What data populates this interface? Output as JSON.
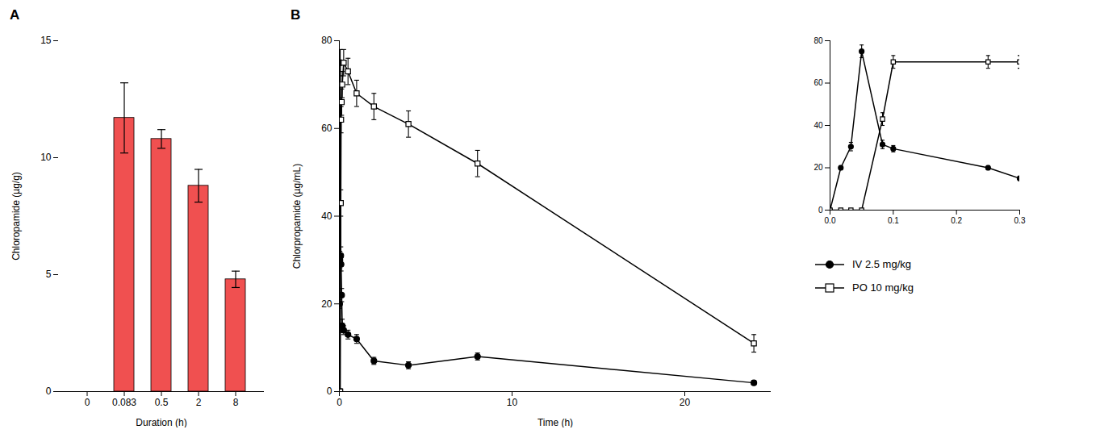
{
  "chart_data": [
    {
      "type": "bar",
      "title": "A",
      "categories": [
        "0",
        "0.083",
        "0.5",
        "2",
        "8"
      ],
      "values": [
        0,
        11.7,
        10.8,
        8.8,
        4.8
      ],
      "errors": [
        0,
        1.5,
        0.4,
        0.7,
        0.35
      ],
      "color": "#F05050",
      "xlabel": "Duration (h)",
      "ylabel": "Chloropamide (µg/g)",
      "ylim": [
        0,
        15
      ],
      "yticks": [
        0,
        5,
        10,
        15
      ]
    },
    {
      "type": "line",
      "title": "B",
      "xlabel": "Time (h)",
      "ylabel": "Chlorpropamide (µg/mL)",
      "x": [
        0,
        0.017,
        0.033,
        0.05,
        0.083,
        0.1,
        0.133,
        0.167,
        0.25,
        0.5,
        1.0,
        2.0,
        4.0,
        8.0,
        24.0
      ],
      "series": [
        {
          "name": "IV 2.5 mg/kg",
          "color": "black",
          "marker": "circle",
          "values": [
            0,
            20,
            30,
            75,
            31,
            29,
            22,
            15,
            14,
            13,
            12,
            7,
            6,
            8,
            2
          ],
          "errors": [
            0,
            1,
            2,
            3,
            2,
            1.5,
            1.5,
            1.5,
            1,
            1,
            1,
            0.8,
            0.8,
            0.8,
            0.5
          ]
        },
        {
          "name": "PO 10 mg/kg",
          "color": "black",
          "marker": "square",
          "values": [
            0,
            0,
            0,
            0,
            43,
            62,
            66,
            70,
            75,
            73,
            68,
            65,
            61,
            52,
            11
          ],
          "errors": [
            0,
            0,
            0,
            0,
            3,
            3,
            3,
            3,
            3,
            3,
            3,
            3,
            3,
            3,
            2
          ]
        }
      ],
      "xlim": [
        0,
        25
      ],
      "xticks": [
        0,
        10,
        20
      ],
      "ylim": [
        0,
        80
      ],
      "yticks": [
        0,
        20,
        40,
        60,
        80
      ],
      "legend": "right"
    },
    {
      "type": "line",
      "x": [
        0,
        0.017,
        0.033,
        0.05,
        0.083,
        0.1,
        0.25,
        0.3
      ],
      "series": [
        {
          "color": "black",
          "marker": "circle",
          "values": [
            0,
            20,
            30,
            75,
            31,
            29,
            20,
            15
          ],
          "errors": [
            0,
            1,
            2,
            3,
            2,
            1.5,
            1,
            1
          ]
        },
        {
          "color": "black",
          "marker": "square",
          "values": [
            0,
            0,
            0,
            0,
            43,
            70,
            70,
            70
          ],
          "errors": [
            0,
            0,
            0,
            0,
            3,
            3,
            3,
            3
          ]
        }
      ],
      "xlim": [
        0,
        0.3
      ],
      "xticks": [
        {
          "value": 0,
          "label": "0.0"
        },
        0.1,
        0.2,
        0.3
      ],
      "ylim": [
        0,
        80
      ],
      "yticks": [
        0,
        20,
        40,
        60,
        80
      ]
    }
  ]
}
